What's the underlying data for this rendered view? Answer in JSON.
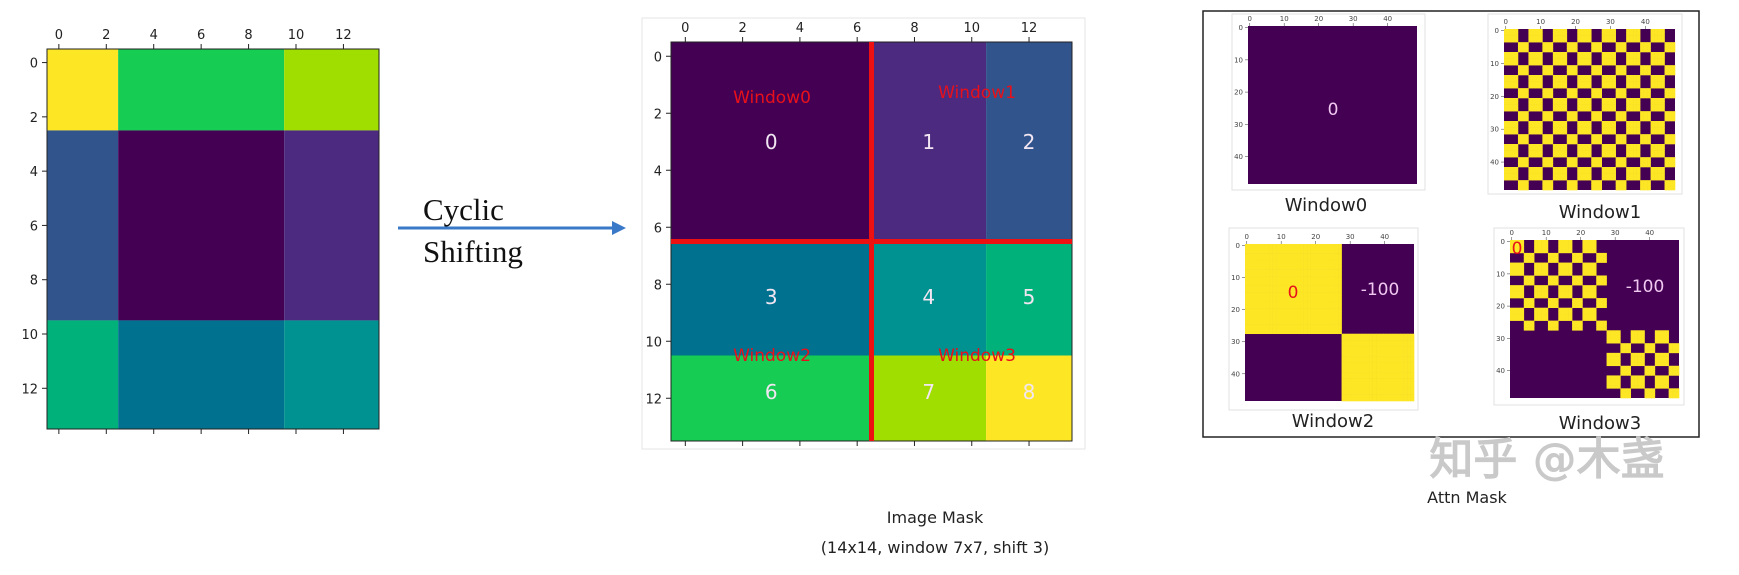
{
  "palette": [
    "#440154",
    "#4b2a7f",
    "#31548c",
    "#00718f",
    "#009290",
    "#00b17a",
    "#16cc52",
    "#a0de00",
    "#fde725"
  ],
  "left_plot": {
    "x_ticks": [
      0,
      2,
      4,
      6,
      8,
      10,
      12
    ],
    "y_ticks": [
      0,
      2,
      4,
      6,
      8,
      10,
      12
    ],
    "col_bounds": [
      -0.5,
      2.5,
      9.5,
      13.5
    ],
    "row_bounds": [
      -0.5,
      2.5,
      9.5,
      13.5
    ],
    "regions": [
      [
        8,
        6,
        7
      ],
      [
        2,
        0,
        1
      ],
      [
        5,
        3,
        4
      ]
    ]
  },
  "arrow": {
    "label_line1": "Cyclic",
    "label_line2": "Shifting",
    "color": "#3a78c8"
  },
  "image_mask": {
    "x_ticks": [
      0,
      2,
      4,
      6,
      8,
      10,
      12
    ],
    "y_ticks": [
      0,
      2,
      4,
      6,
      8,
      10,
      12
    ],
    "col_bounds": [
      -0.5,
      6.5,
      10.5,
      13.5
    ],
    "row_bounds": [
      -0.5,
      6.5,
      10.5,
      13.5
    ],
    "regions": [
      [
        0,
        1,
        2
      ],
      [
        3,
        4,
        5
      ],
      [
        6,
        7,
        8
      ]
    ],
    "region_numbers": [
      "0",
      "1",
      "2",
      "3",
      "4",
      "5",
      "6",
      "7",
      "8"
    ],
    "window_split": 6.5,
    "window_line_color": "#ee1111",
    "window_labels": [
      "Window0",
      "Window1",
      "Window2",
      "Window3"
    ],
    "caption_title": "Image Mask",
    "caption_sub": "(14x14, window 7x7, shift 3)"
  },
  "attn_mask": {
    "ticks": [
      0,
      10,
      20,
      30,
      40
    ],
    "size": 49,
    "same_color": "#fde725",
    "diff_color": "#440154",
    "windows": [
      {
        "label": "Window0",
        "annotations": [
          {
            "text": "0",
            "color": "#f0c8f0"
          }
        ]
      },
      {
        "label": "Window1",
        "annotations": []
      },
      {
        "label": "Window2",
        "annotations": [
          {
            "text": "0",
            "color": "#e8101a"
          },
          {
            "text": "-100",
            "color": "#f0c8f0"
          }
        ]
      },
      {
        "label": "Window3",
        "annotations": [
          {
            "text": "0",
            "color": "#e8101a"
          },
          {
            "text": "-100",
            "color": "#f0c8f0"
          }
        ]
      }
    ],
    "caption": "Attn Mask"
  },
  "watermark": "知乎 @木盏"
}
